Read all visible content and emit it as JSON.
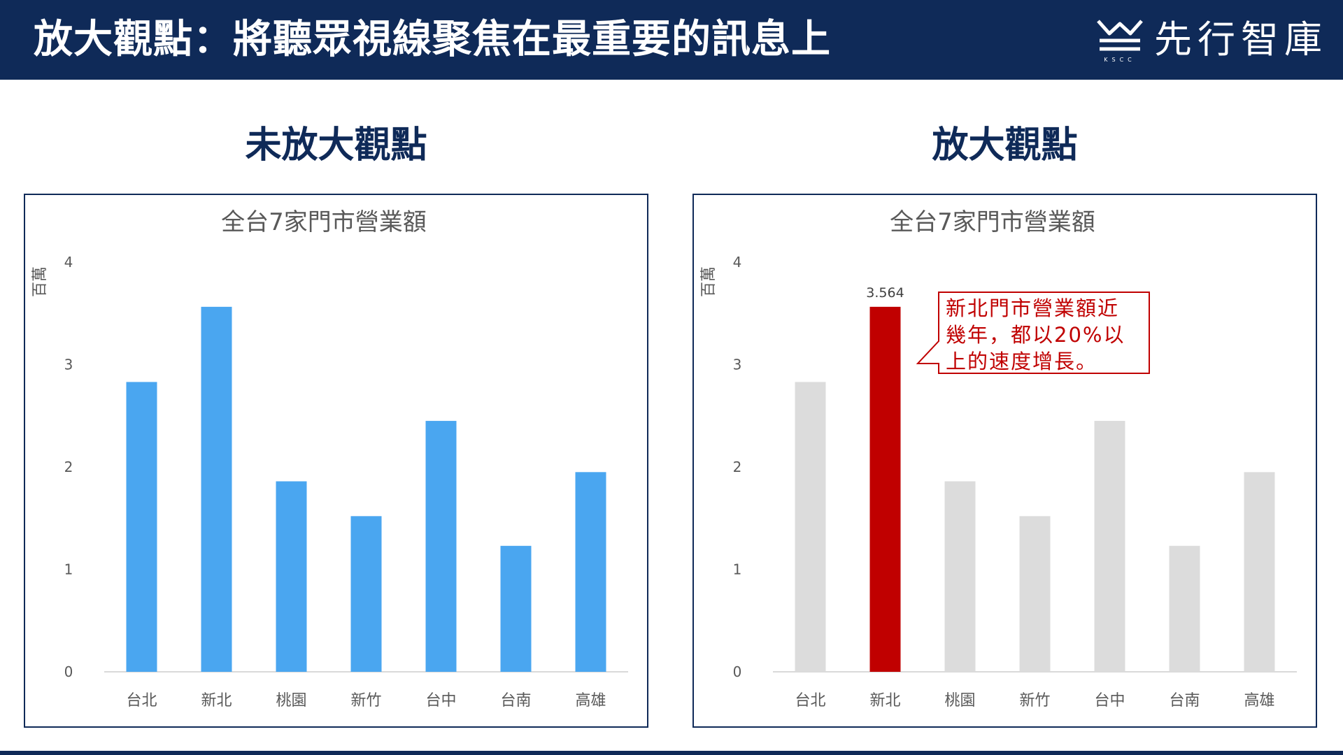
{
  "header": {
    "title": "放大觀點：將聽眾視線聚焦在最重要的訊息上",
    "logo_text": "先行智庫",
    "logo_sub": "KSCC"
  },
  "panels": {
    "left_title": "未放大觀點",
    "right_title": "放大觀點"
  },
  "callout": {
    "lines": [
      "新北門市營業額近",
      "幾年，都以20%以",
      "上的速度增長。"
    ]
  },
  "colors": {
    "header_bg": "#0f2a58",
    "bar_blue": "#4aa6f0",
    "bar_gray": "#dcdcdc",
    "highlight_red": "#c00000"
  },
  "chart_data": [
    {
      "type": "bar",
      "title": "全台7家門市營業額",
      "ylabel": "百萬",
      "xlabel": "",
      "categories": [
        "台北",
        "新北",
        "桃園",
        "新竹",
        "台中",
        "台南",
        "高雄"
      ],
      "values": [
        2.83,
        3.564,
        1.86,
        1.52,
        2.45,
        1.23,
        1.95
      ],
      "ylim": [
        0,
        4
      ],
      "yticks": [
        0,
        1,
        2,
        3,
        4
      ],
      "grid": false,
      "bar_color": "#4aa6f0"
    },
    {
      "type": "bar",
      "title": "全台7家門市營業額",
      "ylabel": "百萬",
      "xlabel": "",
      "categories": [
        "台北",
        "新北",
        "桃園",
        "新竹",
        "台中",
        "台南",
        "高雄"
      ],
      "values": [
        2.83,
        3.564,
        1.86,
        1.52,
        2.45,
        1.23,
        1.95
      ],
      "ylim": [
        0,
        4
      ],
      "yticks": [
        0,
        1,
        2,
        3,
        4
      ],
      "grid": false,
      "bar_color": "#dcdcdc",
      "highlight": {
        "index": 1,
        "color": "#c00000",
        "label": "3.564"
      }
    }
  ]
}
